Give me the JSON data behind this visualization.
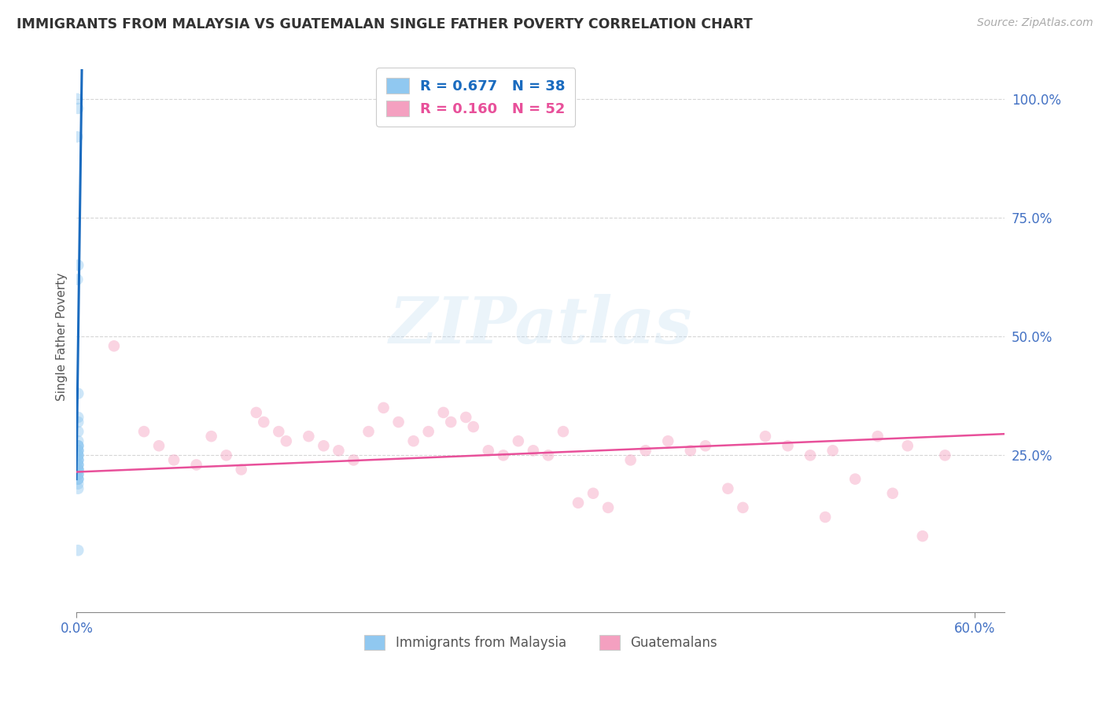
{
  "title": "IMMIGRANTS FROM MALAYSIA VS GUATEMALAN SINGLE FATHER POVERTY CORRELATION CHART",
  "source": "Source: ZipAtlas.com",
  "ylabel": "Single Father Poverty",
  "ytick_labels": [
    "100.0%",
    "75.0%",
    "50.0%",
    "25.0%"
  ],
  "ytick_values": [
    1.0,
    0.75,
    0.5,
    0.25
  ],
  "xlim": [
    0.0,
    0.62
  ],
  "ylim": [
    -0.08,
    1.08
  ],
  "legend_r1": "R = 0.677   N = 38",
  "legend_r2": "R = 0.160   N = 52",
  "legend_label1": "Immigrants from Malaysia",
  "legend_label2": "Guatemalans",
  "blue_scatter_x": [
    0.0005,
    0.001,
    0.0005,
    0.001,
    0.0005,
    0.001,
    0.001,
    0.001,
    0.001,
    0.001,
    0.001,
    0.001,
    0.001,
    0.001,
    0.001,
    0.001,
    0.001,
    0.001,
    0.001,
    0.001,
    0.001,
    0.001,
    0.001,
    0.001,
    0.001,
    0.001,
    0.001,
    0.001,
    0.001,
    0.001,
    0.001,
    0.001,
    0.001,
    0.001,
    0.001,
    0.001,
    0.001,
    0.001
  ],
  "blue_scatter_y": [
    1.0,
    0.98,
    0.92,
    0.65,
    0.62,
    0.38,
    0.33,
    0.32,
    0.3,
    0.28,
    0.27,
    0.27,
    0.27,
    0.26,
    0.26,
    0.26,
    0.25,
    0.25,
    0.25,
    0.24,
    0.24,
    0.24,
    0.23,
    0.23,
    0.23,
    0.22,
    0.22,
    0.22,
    0.22,
    0.21,
    0.21,
    0.21,
    0.2,
    0.2,
    0.2,
    0.19,
    0.18,
    0.05
  ],
  "pink_scatter_x": [
    0.025,
    0.045,
    0.055,
    0.065,
    0.08,
    0.09,
    0.1,
    0.11,
    0.12,
    0.125,
    0.135,
    0.14,
    0.155,
    0.165,
    0.175,
    0.185,
    0.195,
    0.205,
    0.215,
    0.225,
    0.235,
    0.245,
    0.25,
    0.26,
    0.265,
    0.275,
    0.285,
    0.295,
    0.305,
    0.315,
    0.325,
    0.335,
    0.345,
    0.355,
    0.37,
    0.38,
    0.395,
    0.41,
    0.42,
    0.435,
    0.445,
    0.46,
    0.475,
    0.49,
    0.5,
    0.505,
    0.52,
    0.535,
    0.545,
    0.555,
    0.565,
    0.58
  ],
  "pink_scatter_y": [
    0.48,
    0.3,
    0.27,
    0.24,
    0.23,
    0.29,
    0.25,
    0.22,
    0.34,
    0.32,
    0.3,
    0.28,
    0.29,
    0.27,
    0.26,
    0.24,
    0.3,
    0.35,
    0.32,
    0.28,
    0.3,
    0.34,
    0.32,
    0.33,
    0.31,
    0.26,
    0.25,
    0.28,
    0.26,
    0.25,
    0.3,
    0.15,
    0.17,
    0.14,
    0.24,
    0.26,
    0.28,
    0.26,
    0.27,
    0.18,
    0.14,
    0.29,
    0.27,
    0.25,
    0.12,
    0.26,
    0.2,
    0.29,
    0.17,
    0.27,
    0.08,
    0.25
  ],
  "blue_line_x": [
    -0.0002,
    0.0035
  ],
  "blue_line_y": [
    0.2,
    1.06
  ],
  "pink_line_x": [
    0.0,
    0.62
  ],
  "pink_line_y": [
    0.215,
    0.295
  ],
  "watermark": "ZIPatlas",
  "scatter_size": 110,
  "scatter_alpha": 0.45,
  "blue_color": "#90c8f0",
  "pink_color": "#f4a0c0",
  "blue_line_color": "#1a6bbf",
  "pink_line_color": "#e8509a",
  "grid_color": "#cccccc",
  "title_color": "#333333",
  "axis_label_color": "#555555",
  "tick_color": "#4472c4",
  "source_color": "#aaaaaa"
}
